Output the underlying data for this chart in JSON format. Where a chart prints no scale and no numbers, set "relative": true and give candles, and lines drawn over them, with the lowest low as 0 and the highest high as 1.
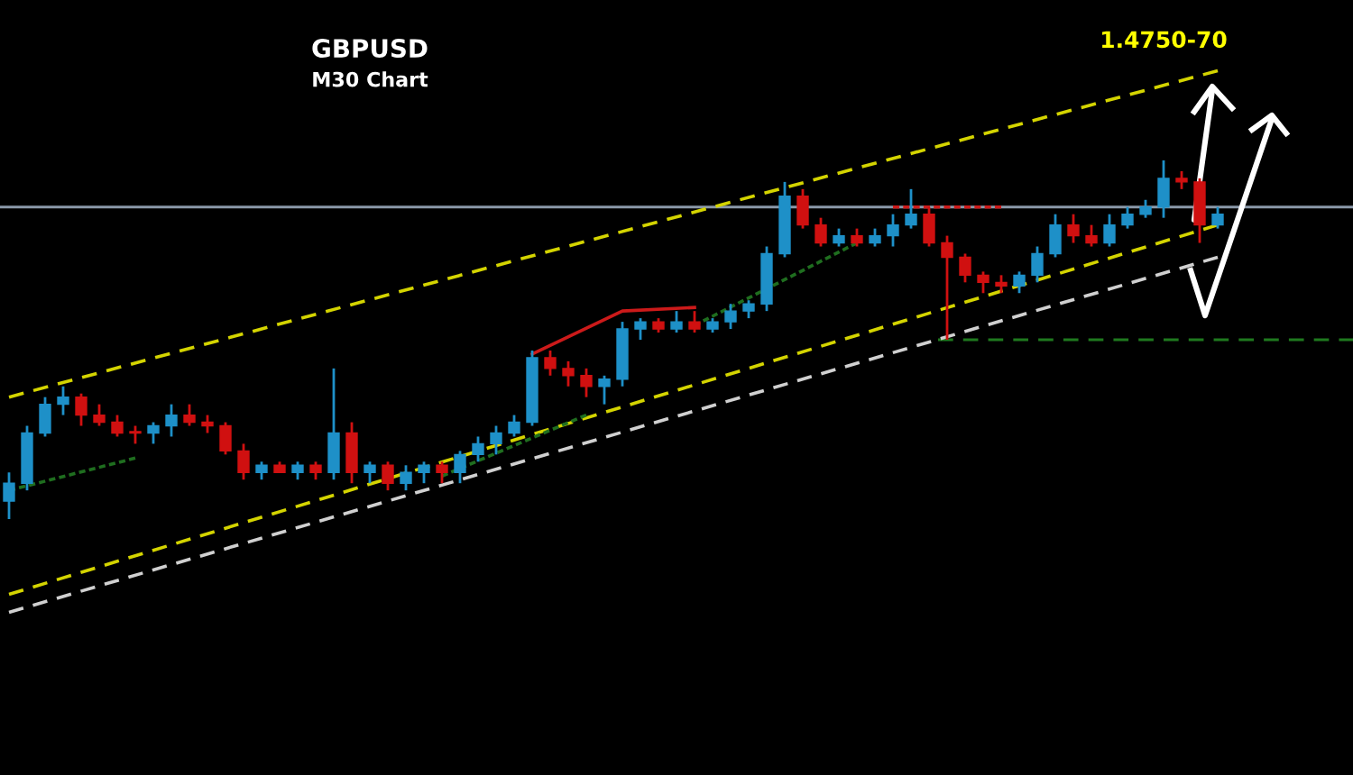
{
  "chart_data": {
    "type": "candlestick",
    "relative": true,
    "title": "GBPUSD",
    "subtitle": "M30 Chart",
    "annotations": [
      "1.4750-70"
    ],
    "ref_lines": [
      {
        "axis": "y",
        "value": 0.87,
        "color": "#8a98a8",
        "line_style": "solid"
      },
      {
        "axis": "y",
        "value": 0.5,
        "color": "#1f7a1f",
        "line_style": "dashed"
      }
    ],
    "series": [
      {
        "type": "line",
        "color": "#d4d400",
        "line_style": "dashed",
        "values": [
          0.34,
          null,
          null,
          null,
          null,
          null,
          null,
          null,
          null,
          null,
          null,
          null,
          null,
          null,
          null,
          null,
          null,
          null,
          null,
          null,
          null,
          null,
          null,
          null,
          null,
          null,
          null,
          null,
          null,
          null,
          null,
          null,
          null,
          null,
          null,
          null,
          null,
          null,
          null,
          null,
          null,
          null,
          null,
          null,
          null,
          null,
          null,
          null,
          null,
          null,
          null,
          null,
          null,
          null,
          null,
          null,
          null,
          null,
          null,
          null,
          null,
          null,
          null,
          null,
          null,
          null,
          null,
          1.25
        ]
      },
      {
        "type": "line",
        "color": "#d4d400",
        "line_style": "dashed",
        "values": [
          -0.21,
          null,
          null,
          null,
          null,
          null,
          null,
          null,
          null,
          null,
          null,
          null,
          null,
          null,
          null,
          null,
          null,
          null,
          null,
          null,
          null,
          null,
          null,
          null,
          null,
          null,
          null,
          null,
          null,
          null,
          null,
          null,
          null,
          null,
          null,
          null,
          null,
          null,
          null,
          null,
          null,
          null,
          null,
          null,
          null,
          null,
          null,
          null,
          null,
          null,
          null,
          null,
          null,
          null,
          null,
          null,
          null,
          null,
          null,
          null,
          null,
          null,
          null,
          null,
          null,
          null,
          null,
          0.82
        ]
      },
      {
        "type": "line",
        "color": "#d0d0d0",
        "line_style": "dashed",
        "values": [
          -0.26,
          null,
          null,
          null,
          null,
          null,
          null,
          null,
          null,
          null,
          null,
          null,
          null,
          null,
          null,
          null,
          null,
          null,
          null,
          null,
          null,
          null,
          null,
          null,
          null,
          null,
          null,
          null,
          null,
          null,
          null,
          null,
          null,
          null,
          null,
          null,
          null,
          null,
          null,
          null,
          null,
          null,
          null,
          null,
          null,
          null,
          null,
          null,
          null,
          null,
          null,
          null,
          null,
          null,
          null,
          null,
          null,
          null,
          null,
          null,
          null,
          null,
          null,
          null,
          null,
          null,
          null,
          0.73
        ]
      },
      {
        "type": "line",
        "color": "#1f6e1f",
        "line_style": "dotted",
        "values": [
          0.08,
          null,
          null,
          null,
          null,
          null,
          null,
          0.17,
          null,
          null,
          null,
          null,
          null,
          null,
          null,
          null,
          null,
          null,
          null,
          null,
          null,
          null,
          null,
          null,
          null,
          null,
          null,
          null,
          null,
          null,
          null,
          null,
          null,
          null,
          null,
          null,
          null,
          null,
          null,
          null,
          null,
          null,
          null,
          null,
          null,
          null,
          null,
          null,
          null,
          null,
          null,
          null,
          null,
          null,
          null,
          null,
          null,
          null,
          null,
          null,
          null,
          null,
          null,
          null,
          null,
          null,
          null,
          null
        ]
      },
      {
        "type": "line",
        "color": "#1f6e1f",
        "line_style": "dotted",
        "values": [
          null,
          null,
          null,
          null,
          null,
          null,
          null,
          null,
          null,
          null,
          null,
          null,
          null,
          null,
          null,
          null,
          null,
          null,
          null,
          null,
          null,
          null,
          null,
          null,
          0.12,
          null,
          null,
          null,
          null,
          null,
          null,
          null,
          0.29,
          null,
          null,
          null,
          null,
          null,
          null,
          null,
          null,
          null,
          null,
          null,
          null,
          null,
          null,
          null,
          null,
          null,
          null,
          null,
          null,
          null,
          null,
          null,
          null,
          null,
          null,
          null,
          null,
          null,
          null,
          null,
          null,
          null,
          null,
          null
        ]
      },
      {
        "type": "line",
        "color": "#1f6e1f",
        "line_style": "dotted",
        "values": [
          null,
          null,
          null,
          null,
          null,
          null,
          null,
          null,
          null,
          null,
          null,
          null,
          null,
          null,
          null,
          null,
          null,
          null,
          null,
          null,
          null,
          null,
          null,
          null,
          null,
          null,
          null,
          null,
          null,
          null,
          null,
          null,
          null,
          null,
          null,
          null,
          null,
          null,
          0.54,
          null,
          null,
          null,
          null,
          null,
          null,
          null,
          null,
          0.77,
          null,
          null,
          null,
          null,
          null,
          null,
          null,
          null,
          null,
          null,
          null,
          null,
          null,
          null,
          null,
          null,
          null,
          null,
          null,
          null
        ]
      },
      {
        "type": "line",
        "color": "#cc1a1a",
        "line_style": "solid",
        "values": [
          null,
          null,
          null,
          null,
          null,
          null,
          null,
          null,
          null,
          null,
          null,
          null,
          null,
          null,
          null,
          null,
          null,
          null,
          null,
          null,
          null,
          null,
          null,
          null,
          null,
          null,
          null,
          null,
          null,
          0.46,
          null,
          null,
          null,
          null,
          0.58,
          null,
          null,
          null,
          0.59,
          null,
          null,
          null,
          null,
          null,
          null,
          null,
          null,
          null,
          null,
          null,
          null,
          null,
          null,
          null,
          null,
          null,
          null,
          null,
          null,
          null,
          null,
          null,
          null,
          null,
          null,
          null,
          null,
          null
        ]
      },
      {
        "type": "line",
        "color": "#cc1a1a",
        "line_style": "dotted",
        "values": [
          null,
          null,
          null,
          null,
          null,
          null,
          null,
          null,
          null,
          null,
          null,
          null,
          null,
          null,
          null,
          null,
          null,
          null,
          null,
          null,
          null,
          null,
          null,
          null,
          null,
          null,
          null,
          null,
          null,
          null,
          null,
          null,
          null,
          null,
          null,
          null,
          null,
          null,
          null,
          null,
          null,
          null,
          null,
          null,
          null,
          null,
          null,
          null,
          null,
          0.87,
          null,
          null,
          null,
          null,
          null,
          0.87,
          null,
          null,
          null,
          null,
          null,
          null,
          null,
          null,
          null,
          null,
          null,
          null
        ]
      }
    ],
    "categories": [
      null,
      null,
      null,
      null,
      null,
      null,
      null,
      null,
      null,
      null,
      null,
      null,
      null,
      null,
      null,
      null,
      null,
      null,
      null,
      null,
      null,
      null,
      null,
      null,
      null,
      null,
      null,
      null,
      null,
      null,
      null,
      null,
      null,
      null,
      null,
      null,
      null,
      null,
      null,
      null,
      null,
      null,
      null,
      null,
      null,
      null,
      null,
      null,
      null,
      null,
      null,
      null,
      null,
      null,
      null,
      null,
      null,
      null,
      null,
      null,
      null,
      null,
      null,
      null,
      null,
      null,
      null,
      null
    ],
    "ohlc": [
      [
        0.05,
        0.13,
        0,
        0.1
      ],
      [
        0.1,
        0.26,
        0.08,
        0.24
      ],
      [
        0.24,
        0.34,
        0.23,
        0.32
      ],
      [
        0.32,
        0.37,
        0.29,
        0.34
      ],
      [
        0.34,
        0.35,
        0.26,
        0.29
      ],
      [
        0.29,
        0.32,
        0.26,
        0.27
      ],
      [
        0.27,
        0.29,
        0.23,
        0.24
      ],
      [
        0.24,
        0.26,
        0.21,
        0.24
      ],
      [
        0.24,
        0.27,
        0.21,
        0.26
      ],
      [
        0.26,
        0.32,
        0.23,
        0.29
      ],
      [
        0.29,
        0.32,
        0.26,
        0.27
      ],
      [
        0.27,
        0.29,
        0.24,
        0.26
      ],
      [
        0.26,
        0.27,
        0.18,
        0.19
      ],
      [
        0.19,
        0.21,
        0.11,
        0.13
      ],
      [
        0.13,
        0.16,
        0.11,
        0.15
      ],
      [
        0.15,
        0.16,
        0.13,
        0.13
      ],
      [
        0.13,
        0.16,
        0.11,
        0.15
      ],
      [
        0.15,
        0.16,
        0.11,
        0.13
      ],
      [
        0.13,
        0.42,
        0.11,
        0.24
      ],
      [
        0.24,
        0.27,
        0.1,
        0.13
      ],
      [
        0.13,
        0.16,
        0.1,
        0.15
      ],
      [
        0.15,
        0.16,
        0.08,
        0.1
      ],
      [
        0.1,
        0.15,
        0.08,
        0.13
      ],
      [
        0.13,
        0.16,
        0.1,
        0.15
      ],
      [
        0.15,
        0.16,
        0.1,
        0.13
      ],
      [
        0.13,
        0.19,
        0.1,
        0.18
      ],
      [
        0.18,
        0.23,
        0.16,
        0.21
      ],
      [
        0.21,
        0.26,
        0.18,
        0.24
      ],
      [
        0.24,
        0.29,
        0.23,
        0.27
      ],
      [
        0.27,
        0.47,
        0.26,
        0.45
      ],
      [
        0.45,
        0.47,
        0.4,
        0.42
      ],
      [
        0.42,
        0.44,
        0.37,
        0.4
      ],
      [
        0.4,
        0.42,
        0.34,
        0.37
      ],
      [
        0.37,
        0.4,
        0.32,
        0.39
      ],
      [
        0.39,
        0.55,
        0.37,
        0.53
      ],
      [
        0.53,
        0.56,
        0.5,
        0.55
      ],
      [
        0.55,
        0.56,
        0.52,
        0.53
      ],
      [
        0.53,
        0.58,
        0.52,
        0.55
      ],
      [
        0.55,
        0.58,
        0.52,
        0.53
      ],
      [
        0.53,
        0.56,
        0.52,
        0.55
      ],
      [
        0.55,
        0.6,
        0.53,
        0.58
      ],
      [
        0.58,
        0.61,
        0.56,
        0.6
      ],
      [
        0.6,
        0.76,
        0.58,
        0.74
      ],
      [
        0.74,
        0.94,
        0.73,
        0.9
      ],
      [
        0.9,
        0.92,
        0.81,
        0.82
      ],
      [
        0.82,
        0.84,
        0.76,
        0.77
      ],
      [
        0.77,
        0.81,
        0.76,
        0.79
      ],
      [
        0.79,
        0.81,
        0.76,
        0.77
      ],
      [
        0.77,
        0.81,
        0.76,
        0.79
      ],
      [
        0.79,
        0.85,
        0.76,
        0.82
      ],
      [
        0.82,
        0.92,
        0.81,
        0.85
      ],
      [
        0.85,
        0.87,
        0.76,
        0.77
      ],
      [
        0.77,
        0.79,
        0.5,
        0.73
      ],
      [
        0.73,
        0.74,
        0.66,
        0.68
      ],
      [
        0.68,
        0.69,
        0.63,
        0.66
      ],
      [
        0.66,
        0.68,
        0.63,
        0.65
      ],
      [
        0.65,
        0.69,
        0.63,
        0.68
      ],
      [
        0.68,
        0.76,
        0.66,
        0.74
      ],
      [
        0.74,
        0.85,
        0.73,
        0.82
      ],
      [
        0.82,
        0.85,
        0.77,
        0.79
      ],
      [
        0.79,
        0.82,
        0.76,
        0.77
      ],
      [
        0.77,
        0.85,
        0.76,
        0.82
      ],
      [
        0.82,
        0.87,
        0.81,
        0.85
      ],
      [
        0.85,
        0.89,
        0.84,
        0.87
      ],
      [
        0.87,
        1,
        0.84,
        0.95
      ],
      [
        0.95,
        0.97,
        0.92,
        0.94
      ],
      [
        0.94,
        0.95,
        0.77,
        0.82
      ],
      [
        0.82,
        0.87,
        0.81,
        0.85
      ]
    ],
    "colors": [
      "#1e90c8",
      "#1e90c8",
      "#1e90c8",
      "#1e90c8",
      "#d01010",
      "#d01010",
      "#d01010",
      "#d01010",
      "#1e90c8",
      "#1e90c8",
      "#d01010",
      "#d01010",
      "#d01010",
      "#d01010",
      "#1e90c8",
      "#d01010",
      "#1e90c8",
      "#d01010",
      "#1e90c8",
      "#d01010",
      "#1e90c8",
      "#d01010",
      "#1e90c8",
      "#1e90c8",
      "#d01010",
      "#1e90c8",
      "#1e90c8",
      "#1e90c8",
      "#1e90c8",
      "#1e90c8",
      "#d01010",
      "#d01010",
      "#d01010",
      "#1e90c8",
      "#1e90c8",
      "#1e90c8",
      "#d01010",
      "#1e90c8",
      "#d01010",
      "#1e90c8",
      "#1e90c8",
      "#1e90c8",
      "#1e90c8",
      "#1e90c8",
      "#d01010",
      "#d01010",
      "#1e90c8",
      "#d01010",
      "#1e90c8",
      "#1e90c8",
      "#1e90c8",
      "#d01010",
      "#d01010",
      "#d01010",
      "#d01010",
      "#d01010",
      "#1e90c8",
      "#1e90c8",
      "#1e90c8",
      "#d01010",
      "#d01010",
      "#1e90c8",
      "#1e90c8",
      "#1e90c8",
      "#1e90c8",
      "#d01010",
      "#d01010",
      "#1e90c8"
    ]
  }
}
